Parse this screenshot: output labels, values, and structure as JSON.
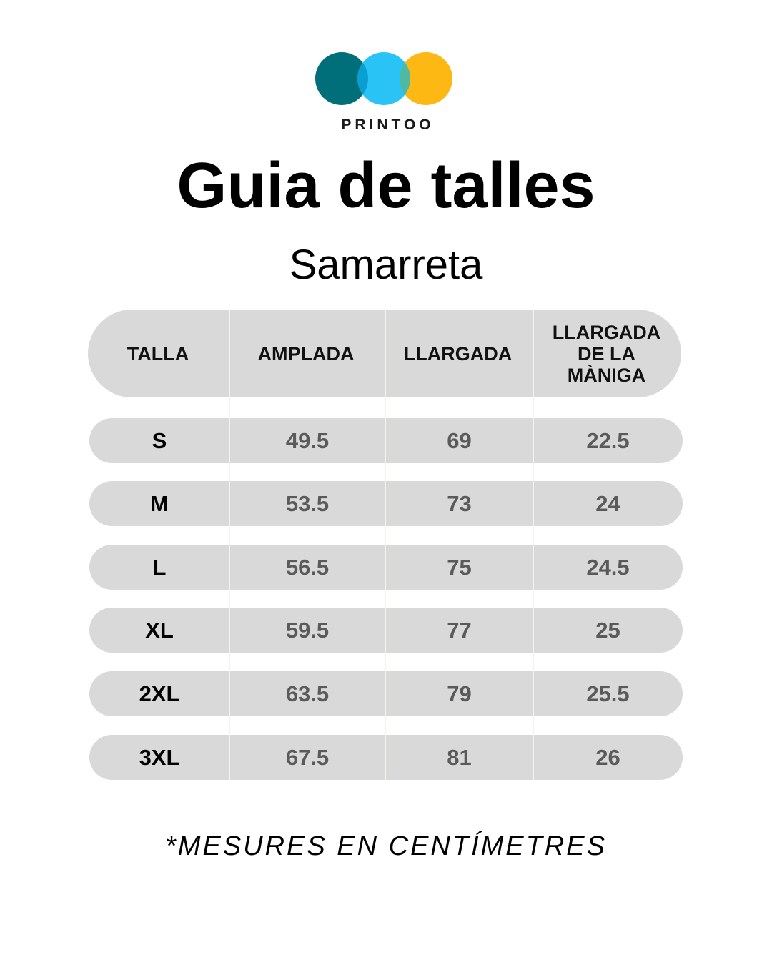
{
  "brand": {
    "name": "PRINTOO",
    "colors": [
      "#006f7a",
      "#29c3f5",
      "#fdb813"
    ]
  },
  "title": "Guia de talles",
  "subtitle": "Samarreta",
  "table": {
    "headers": [
      "TALLA",
      "AMPLADA",
      "LLARGADA",
      "LLARGADA DE LA MÀNIGA"
    ],
    "rows": [
      [
        "S",
        "49.5",
        "69",
        "22.5"
      ],
      [
        "M",
        "53.5",
        "73",
        "24"
      ],
      [
        "L",
        "56.5",
        "75",
        "24.5"
      ],
      [
        "XL",
        "59.5",
        "77",
        "25"
      ],
      [
        "2XL",
        "63.5",
        "79",
        "25.5"
      ],
      [
        "3XL",
        "67.5",
        "81",
        "26"
      ]
    ]
  },
  "note": "*MESURES EN CENTÍMETRES"
}
